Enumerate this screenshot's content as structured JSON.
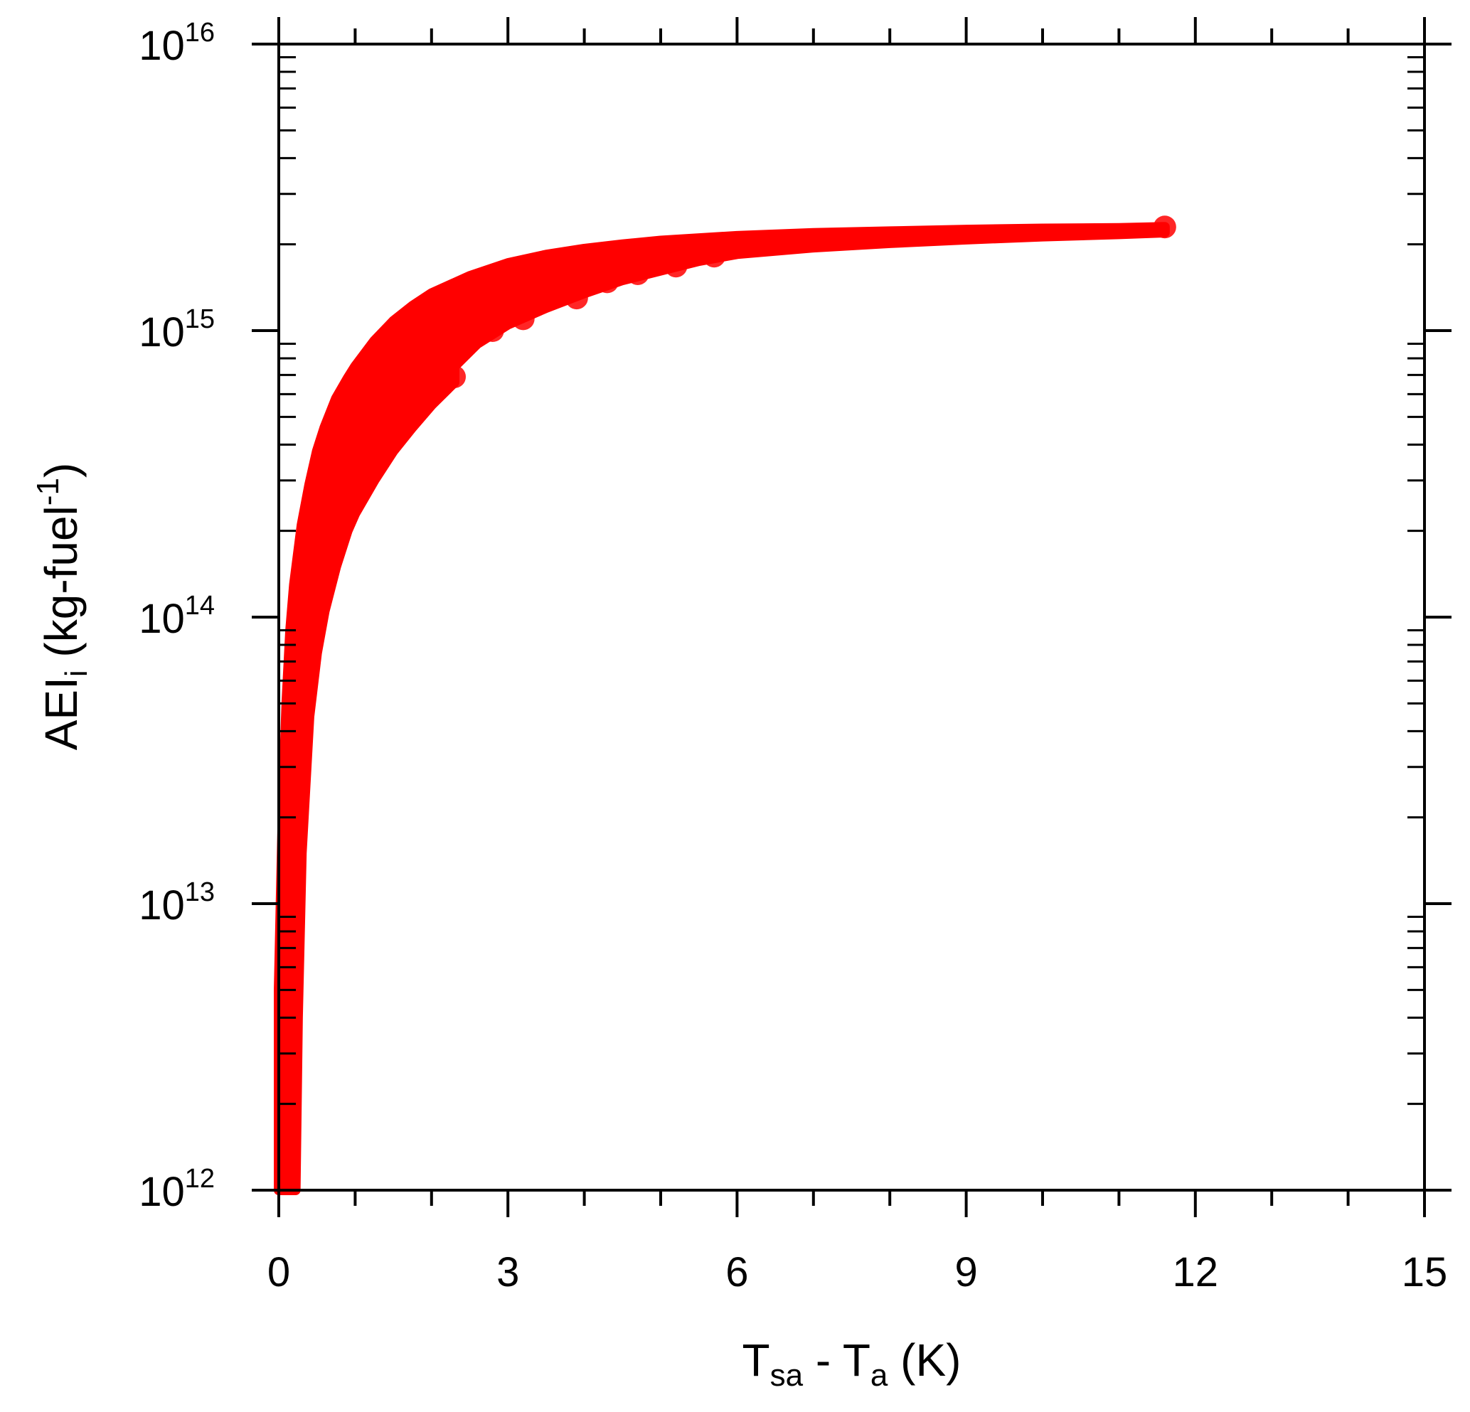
{
  "chart_data": {
    "type": "scatter",
    "title": "",
    "xlabel": {
      "main": "T",
      "sub1": "sa",
      "mid": " - T",
      "sub2": "a",
      "tail": " (K)"
    },
    "ylabel": {
      "main": "AEI",
      "sub": "i",
      "mid": " (kg-fuel",
      "sup": "-1",
      "tail": ")"
    },
    "x_scale": "linear",
    "y_scale": "log",
    "xlim": [
      0,
      15
    ],
    "ylim": [
      1000000000000.0,
      1e+16
    ],
    "x_ticks": [
      {
        "value": 0,
        "label": "0"
      },
      {
        "value": 3,
        "label": "3"
      },
      {
        "value": 6,
        "label": "6"
      },
      {
        "value": 9,
        "label": "9"
      },
      {
        "value": 12,
        "label": "12"
      },
      {
        "value": 15,
        "label": "15"
      }
    ],
    "y_ticks": [
      {
        "value": 1000000000000.0,
        "base": "10",
        "exp": "12"
      },
      {
        "value": 10000000000000.0,
        "base": "10",
        "exp": "13"
      },
      {
        "value": 100000000000000.0,
        "base": "10",
        "exp": "14"
      },
      {
        "value": 1000000000000000.0,
        "base": "10",
        "exp": "15"
      },
      {
        "value": 1e+16,
        "base": "10",
        "exp": "16"
      }
    ],
    "x_minor_step": 1,
    "grid": false,
    "marker_color": "#ff0000",
    "series": [
      {
        "band_upper": [
          [
            0.0,
            5000000000000.0
          ],
          [
            0.05,
            20000000000000.0
          ],
          [
            0.1,
            50000000000000.0
          ],
          [
            0.15,
            90000000000000.0
          ],
          [
            0.2,
            130000000000000.0
          ],
          [
            0.3,
            210000000000000.0
          ],
          [
            0.4,
            290000000000000.0
          ],
          [
            0.5,
            380000000000000.0
          ],
          [
            0.6,
            460000000000000.0
          ],
          [
            0.75,
            580000000000000.0
          ],
          [
            0.9,
            680000000000000.0
          ],
          [
            1.0,
            750000000000000.0
          ],
          [
            1.25,
            920000000000000.0
          ],
          [
            1.5,
            1080000000000000.0
          ],
          [
            1.75,
            1220000000000000.0
          ],
          [
            2.0,
            1350000000000000.0
          ],
          [
            2.5,
            1550000000000000.0
          ],
          [
            3.0,
            1720000000000000.0
          ],
          [
            3.5,
            1840000000000000.0
          ],
          [
            4.0,
            1930000000000000.0
          ],
          [
            4.5,
            2000000000000000.0
          ],
          [
            5.0,
            2060000000000000.0
          ],
          [
            6.0,
            2140000000000000.0
          ],
          [
            7.0,
            2190000000000000.0
          ],
          [
            8.0,
            2220000000000000.0
          ],
          [
            9.0,
            2250000000000000.0
          ],
          [
            10.0,
            2270000000000000.0
          ],
          [
            11.0,
            2280000000000000.0
          ],
          [
            11.6,
            2300000000000000.0
          ]
        ],
        "band_lower": [
          [
            0.22,
            1000000000000.0
          ],
          [
            0.25,
            4000000000000.0
          ],
          [
            0.3,
            15000000000000.0
          ],
          [
            0.4,
            45000000000000.0
          ],
          [
            0.5,
            75000000000000.0
          ],
          [
            0.6,
            105000000000000.0
          ],
          [
            0.75,
            150000000000000.0
          ],
          [
            0.9,
            200000000000000.0
          ],
          [
            1.0,
            230000000000000.0
          ],
          [
            1.25,
            300000000000000.0
          ],
          [
            1.5,
            380000000000000.0
          ],
          [
            1.75,
            460000000000000.0
          ],
          [
            2.0,
            550000000000000.0
          ],
          [
            2.3,
            660000000000000.0
          ]
        ],
        "band_lower_upper_branch": [
          [
            2.3,
            750000000000000.0
          ],
          [
            2.6,
            900000000000000.0
          ],
          [
            3.0,
            1050000000000000.0
          ],
          [
            3.5,
            1200000000000000.0
          ],
          [
            4.0,
            1350000000000000.0
          ],
          [
            4.5,
            1500000000000000.0
          ],
          [
            5.0,
            1620000000000000.0
          ],
          [
            5.5,
            1750000000000000.0
          ],
          [
            6.0,
            1850000000000000.0
          ],
          [
            7.0,
            1950000000000000.0
          ],
          [
            8.0,
            2020000000000000.0
          ],
          [
            9.0,
            2080000000000000.0
          ],
          [
            10.0,
            2130000000000000.0
          ],
          [
            11.0,
            2170000000000000.0
          ],
          [
            11.6,
            2200000000000000.0
          ]
        ],
        "edge_points": [
          [
            2.3,
            690000000000000.0
          ],
          [
            2.5,
            950000000000000.0
          ],
          [
            2.8,
            1000000000000000.0
          ],
          [
            3.2,
            1100000000000000.0
          ],
          [
            3.9,
            1300000000000000.0
          ],
          [
            4.3,
            1480000000000000.0
          ],
          [
            4.7,
            1580000000000000.0
          ],
          [
            5.2,
            1680000000000000.0
          ],
          [
            5.7,
            1820000000000000.0
          ],
          [
            11.6,
            2300000000000000.0
          ]
        ]
      }
    ]
  }
}
